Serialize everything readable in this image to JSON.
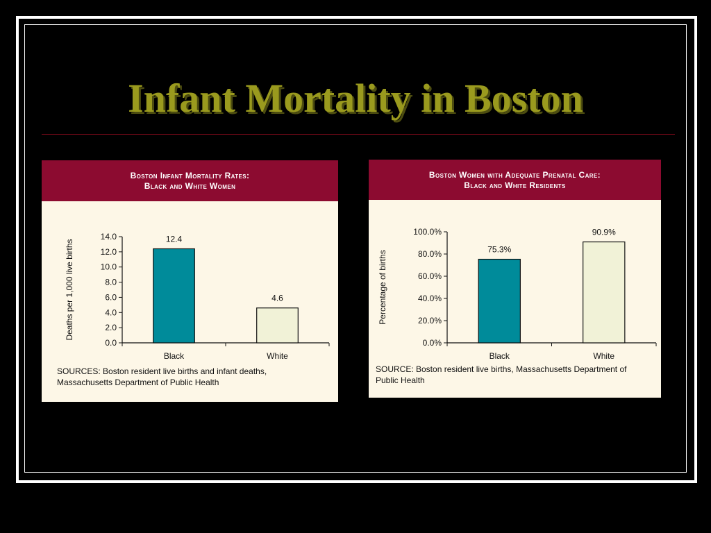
{
  "slide": {
    "title": "Infant Mortality in Boston"
  },
  "colors": {
    "background": "#000000",
    "title": "#9a9a1e",
    "panel_header": "#8c0b30",
    "panel_body": "#fdf7e7",
    "bar_black": "#008b9a",
    "bar_white": "#f1f2d7"
  },
  "left_panel": {
    "title_line1": "Boston Infant Mortality Rates:",
    "title_line2": "Black and White Women",
    "source_line1": "SOURCES:  Boston resident live births and infant deaths,",
    "source_line2": "Massachusetts Department of Public Health"
  },
  "right_panel": {
    "title_line1": "Boston Women with Adequate Prenatal Care:",
    "title_line2": "Black and White Residents",
    "source_line1": "SOURCE:  Boston resident live births, Massachusetts Department of",
    "source_line2": "Public Health"
  },
  "chart_data": [
    {
      "type": "bar",
      "title": "Boston Infant Mortality Rates: Black and White Women",
      "categories": [
        "Black",
        "White"
      ],
      "values": [
        12.4,
        4.6
      ],
      "data_labels": [
        "12.4",
        "4.6"
      ],
      "ylabel": "Deaths per 1,000 live births",
      "xlabel": "",
      "ylim": [
        0,
        14
      ],
      "yticks": [
        "0.0",
        "2.0",
        "4.0",
        "6.0",
        "8.0",
        "10.0",
        "12.0",
        "14.0"
      ],
      "bar_colors": [
        "#008b9a",
        "#f1f2d7"
      ],
      "grid": false
    },
    {
      "type": "bar",
      "title": "Boston Women with Adequate Prenatal Care: Black and White Residents",
      "categories": [
        "Black",
        "White"
      ],
      "values": [
        75.3,
        90.9
      ],
      "data_labels": [
        "75.3%",
        "90.9%"
      ],
      "ylabel": "Percentage of births",
      "xlabel": "",
      "ylim": [
        0,
        100
      ],
      "yticks": [
        "0.0%",
        "20.0%",
        "40.0%",
        "60.0%",
        "80.0%",
        "100.0%"
      ],
      "bar_colors": [
        "#008b9a",
        "#f1f2d7"
      ],
      "grid": false
    }
  ]
}
